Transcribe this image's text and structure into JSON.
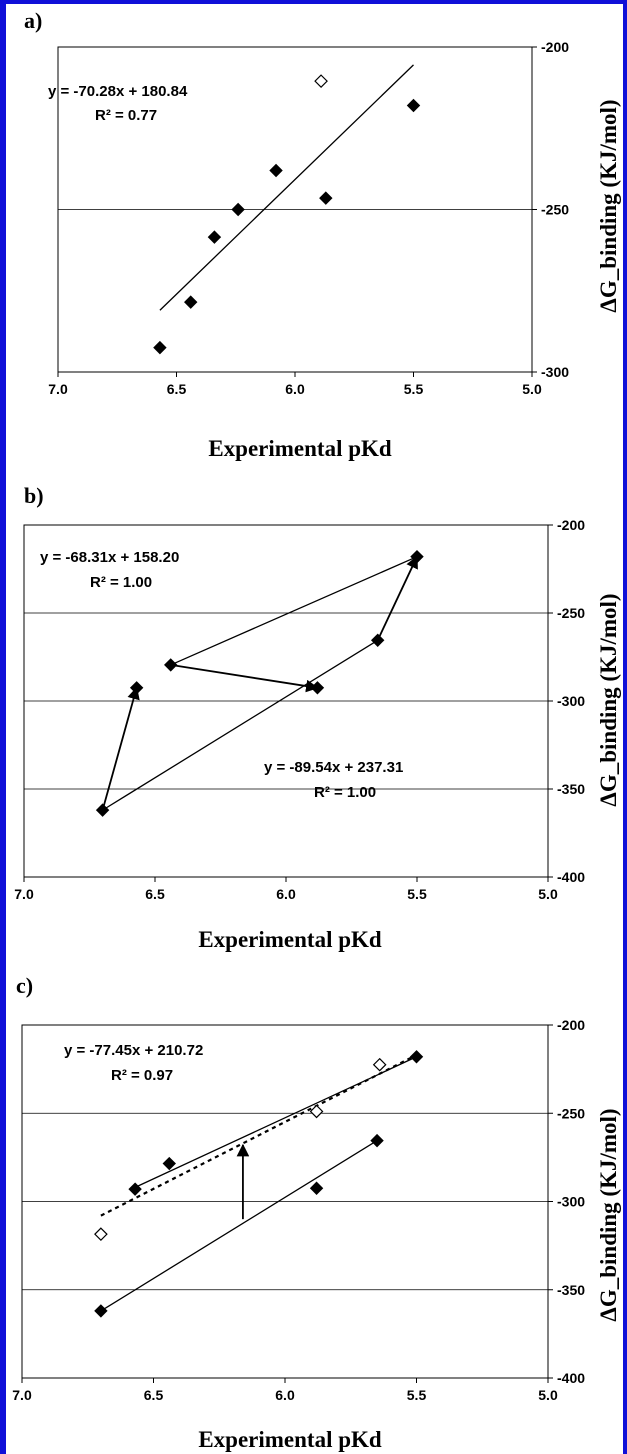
{
  "chart_data": [
    {
      "panel_label": "a)",
      "type": "scatter",
      "xlabel": "Experimental pKd",
      "ylabel": "ΔG_binding (KJ/mol)",
      "xlim": [
        7.0,
        5.0
      ],
      "x_reversed": true,
      "ylim": [
        -300,
        -200
      ],
      "x_ticks": [
        "7.0",
        "6.5",
        "6.0",
        "5.5",
        "5.0"
      ],
      "y_ticks": [
        "-200",
        "-250",
        "-300"
      ],
      "gridlines_y": [
        -250
      ],
      "y_axis_side": "right",
      "series": [
        {
          "marker": "filled-diamond",
          "points": [
            [
              6.57,
              -292.5
            ],
            [
              6.44,
              -278.5
            ],
            [
              6.34,
              -258.5
            ],
            [
              6.24,
              -250.0
            ],
            [
              6.08,
              -238.0
            ],
            [
              5.87,
              -246.5
            ],
            [
              5.5,
              -218.0
            ]
          ]
        },
        {
          "marker": "open-diamond",
          "points": [
            [
              5.89,
              -210.5
            ]
          ]
        }
      ],
      "fit_lines": [
        {
          "style": "solid",
          "from": [
            6.57,
            -281
          ],
          "to": [
            5.5,
            -205.5
          ]
        }
      ],
      "annotations": [
        {
          "text": "y = -70.28x + 180.84"
        },
        {
          "text": "R² = 0.77"
        }
      ]
    },
    {
      "panel_label": "b)",
      "type": "scatter",
      "xlabel": "Experimental pKd",
      "ylabel": "ΔG_binding (KJ/mol)",
      "xlim": [
        7.0,
        5.0
      ],
      "x_reversed": true,
      "ylim": [
        -400,
        -200
      ],
      "x_ticks": [
        "7.0",
        "6.5",
        "6.0",
        "5.5",
        "5.0"
      ],
      "y_ticks": [
        "-200",
        "-250",
        "-300",
        "-350",
        "-400"
      ],
      "gridlines_y": [
        -250,
        -300,
        -350
      ],
      "y_axis_side": "right",
      "series": [
        {
          "marker": "filled-diamond",
          "points": [
            [
              6.7,
              -362.0
            ],
            [
              6.57,
              -292.5
            ],
            [
              6.44,
              -279.5
            ],
            [
              5.88,
              -292.5
            ],
            [
              5.65,
              -265.5
            ],
            [
              5.5,
              -218.0
            ]
          ]
        }
      ],
      "fit_lines": [
        {
          "style": "solid",
          "from": [
            6.44,
            -279.5
          ],
          "to": [
            5.5,
            -218.0
          ]
        },
        {
          "style": "solid",
          "from": [
            6.7,
            -362.0
          ],
          "to": [
            5.65,
            -265.5
          ]
        }
      ],
      "arrows": [
        {
          "from": [
            6.7,
            -362.0
          ],
          "to": [
            6.57,
            -292.5
          ]
        },
        {
          "from": [
            6.44,
            -279.5
          ],
          "to": [
            5.88,
            -292.5
          ]
        },
        {
          "from": [
            5.65,
            -265.5
          ],
          "to": [
            5.5,
            -218.0
          ]
        }
      ],
      "annotations": [
        {
          "text": "y = -68.31x + 158.20"
        },
        {
          "text": "R² = 1.00"
        },
        {
          "text": "y = -89.54x + 237.31"
        },
        {
          "text": "R² = 1.00"
        }
      ]
    },
    {
      "panel_label": "c)",
      "type": "scatter",
      "xlabel": "Experimental pKd",
      "ylabel": "ΔG_binding (KJ/mol)",
      "xlim": [
        7.0,
        5.0
      ],
      "x_reversed": true,
      "ylim": [
        -400,
        -200
      ],
      "x_ticks": [
        "7.0",
        "6.5",
        "6.0",
        "5.5",
        "5.0"
      ],
      "y_ticks": [
        "-200",
        "-250",
        "-300",
        "-350",
        "-400"
      ],
      "gridlines_y": [
        -250,
        -300,
        -350
      ],
      "y_axis_side": "right",
      "series": [
        {
          "marker": "filled-diamond",
          "points": [
            [
              6.7,
              -362.0
            ],
            [
              6.57,
              -293.0
            ],
            [
              6.44,
              -278.5
            ],
            [
              5.88,
              -292.5
            ],
            [
              5.65,
              -265.5
            ],
            [
              5.5,
              -218.0
            ]
          ]
        },
        {
          "marker": "open-diamond",
          "points": [
            [
              6.7,
              -318.5
            ],
            [
              5.88,
              -249.0
            ],
            [
              5.64,
              -222.5
            ]
          ]
        }
      ],
      "fit_lines": [
        {
          "style": "solid",
          "from": [
            6.57,
            -292.0
          ],
          "to": [
            5.5,
            -218.0
          ]
        },
        {
          "style": "solid",
          "from": [
            6.7,
            -362.0
          ],
          "to": [
            5.65,
            -265.5
          ]
        },
        {
          "style": "dotted",
          "from": [
            6.7,
            -308.0
          ],
          "to": [
            5.5,
            -217.0
          ]
        }
      ],
      "arrows": [
        {
          "from": [
            6.16,
            -310.0
          ],
          "to": [
            6.16,
            -268.0
          ]
        }
      ],
      "annotations": [
        {
          "text": "y = -77.45x + 210.72"
        },
        {
          "text": "R² = 0.97"
        }
      ]
    }
  ],
  "theme": {
    "frame_color": "#1010d8",
    "ink": "#000000",
    "grid": "#000000"
  }
}
